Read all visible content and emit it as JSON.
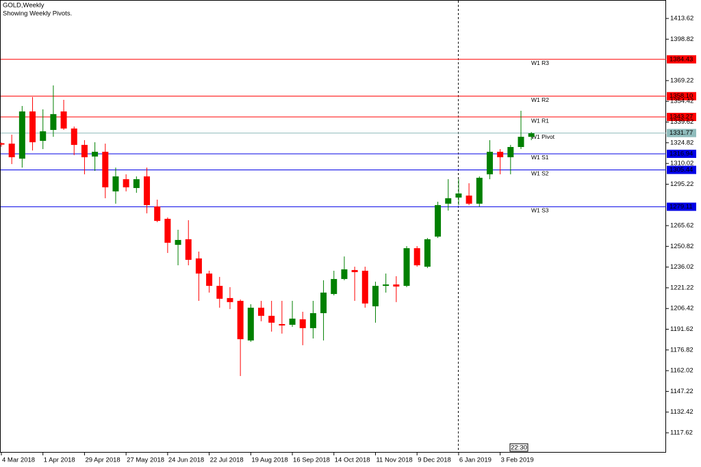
{
  "chart_data": {
    "type": "candlestick",
    "title": "GOLD,Weekly",
    "subtitle": "Showing Weekly Pivots.",
    "categories": [
      "4 Mar 2018",
      null,
      null,
      null,
      "1 Apr 2018",
      null,
      null,
      null,
      "29 Apr 2018",
      null,
      null,
      null,
      "27 May 2018",
      null,
      null,
      null,
      "24 Jun 2018",
      null,
      null,
      null,
      "22 Jul 2018",
      null,
      null,
      null,
      "19 Aug 2018",
      null,
      null,
      null,
      "16 Sep 2018",
      null,
      null,
      null,
      "14 Oct 2018",
      null,
      null,
      null,
      "11 Nov 2018",
      null,
      null,
      null,
      "9 Dec 2018",
      null,
      null,
      null,
      "6 Jan 2019",
      null,
      null,
      null,
      "3 Feb 2019",
      null,
      null,
      null
    ],
    "open": [
      1324.5,
      1324.2,
      1313.5,
      1347.2,
      1326.2,
      1334.0,
      1347.2,
      1335.0,
      1323.3,
      1315.0,
      1318.4,
      1290.1,
      1298.8,
      1292.5,
      1300.8,
      1279.3,
      1270.5,
      1251.9,
      1255.9,
      1242.2,
      1231.4,
      1222.6,
      1213.9,
      1211.9,
      1183.6,
      1207.0,
      1201.2,
      1195.3,
      1194.8,
      1198.7,
      1192.4,
      1203.1,
      1216.8,
      1227.5,
      1233.9,
      1233.4,
      1208.0,
      1222.6,
      1223.6,
      1222.6,
      1249.5,
      1236.3,
      1257.8,
      1281.3,
      1285.7,
      1287.1,
      1281.3,
      1302.3,
      1318.4,
      1314.5,
      1321.8,
      1329.1
    ],
    "high": [
      1325.0,
      1330.6,
      1351.1,
      1357.5,
      1348.7,
      1365.8,
      1355.5,
      1336.4,
      1326.7,
      1325.2,
      1324.2,
      1307.1,
      1302.3,
      1300.8,
      1307.1,
      1284.2,
      1271.5,
      1262.7,
      1269.5,
      1247.1,
      1233.4,
      1229.0,
      1221.7,
      1212.9,
      1209.5,
      1211.9,
      1211.9,
      1211.9,
      1211.9,
      1204.1,
      1211.9,
      1226.6,
      1233.4,
      1243.6,
      1236.3,
      1236.3,
      1225.6,
      1231.4,
      1229.5,
      1251.0,
      1251.0,
      1256.8,
      1282.7,
      1298.8,
      1298.8,
      1295.9,
      1300.8,
      1326.7,
      1320.3,
      1323.3,
      1347.7,
      1332.5
    ],
    "low": [
      1322.0,
      1309.6,
      1307.1,
      1319.3,
      1320.3,
      1329.1,
      1334.0,
      1316.0,
      1302.3,
      1304.7,
      1285.2,
      1281.3,
      1290.1,
      1289.1,
      1274.4,
      1268.1,
      1246.1,
      1237.3,
      1237.3,
      1211.9,
      1217.8,
      1207.0,
      1206.0,
      1158.2,
      1182.6,
      1197.3,
      1189.9,
      1188.5,
      1193.3,
      1180.2,
      1185.0,
      1183.6,
      1215.8,
      1226.6,
      1211.9,
      1207.0,
      1196.3,
      1217.8,
      1211.0,
      1221.7,
      1236.3,
      1235.3,
      1256.8,
      1276.4,
      1280.3,
      1280.3,
      1279.3,
      1298.8,
      1302.3,
      1302.3,
      1320.3,
      1326.7
    ],
    "close": [
      1323.5,
      1314.5,
      1347.2,
      1325.2,
      1333.0,
      1345.3,
      1335.0,
      1323.3,
      1314.5,
      1318.4,
      1293.0,
      1300.8,
      1293.0,
      1298.8,
      1280.3,
      1269.0,
      1253.4,
      1255.4,
      1241.2,
      1231.4,
      1222.6,
      1213.4,
      1211.0,
      1184.5,
      1207.0,
      1201.2,
      1196.3,
      1194.3,
      1199.2,
      1192.4,
      1203.1,
      1217.8,
      1227.5,
      1234.4,
      1232.4,
      1210.0,
      1222.6,
      1223.6,
      1222.1,
      1249.5,
      1237.3,
      1255.9,
      1280.3,
      1285.2,
      1288.6,
      1281.3,
      1299.8,
      1318.4,
      1314.5,
      1321.8,
      1329.1,
      1331.6
    ],
    "up_color": "#008000",
    "down_color": "#ff0000",
    "ylim": [
      1103.46,
      1426.81
    ],
    "yticks": [
      1413.62,
      1398.82,
      1369.22,
      1354.42,
      1339.62,
      1324.82,
      1310.02,
      1295.22,
      1265.62,
      1250.82,
      1236.02,
      1221.22,
      1206.42,
      1191.62,
      1176.82,
      1162.02,
      1147.22,
      1132.42,
      1117.62
    ],
    "levels": {
      "names": [
        "W1 R3",
        "W1 R2",
        "W1 R1",
        "W1 Pivot",
        "W1 S1",
        "W1 S2",
        "W1 S3"
      ],
      "values": [
        1384.43,
        1358.1,
        1343.27,
        1331.77,
        1316.94,
        1305.44,
        1279.11
      ],
      "value_labels": [
        "1384.43",
        "1358.10",
        "1343.27",
        "1331.77",
        "1316.94",
        "1305.44",
        "1279.11"
      ],
      "colors": [
        "#ff0000",
        "#ff0000",
        "#ff0000",
        "#8fbcbc",
        "#0000e6",
        "#0000e6",
        "#0000e6"
      ]
    },
    "time_label": "22:30"
  }
}
